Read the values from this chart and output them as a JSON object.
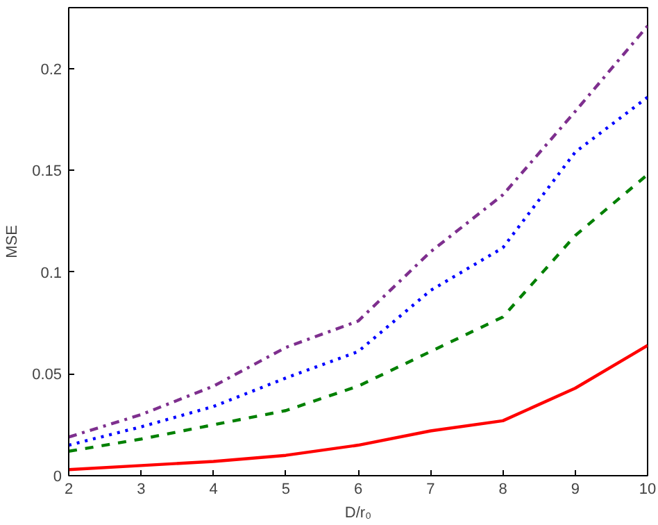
{
  "chart_data": {
    "type": "line",
    "xlabel": "D/r₀",
    "ylabel": "MSE",
    "x": [
      2,
      3,
      4,
      5,
      6,
      7,
      8,
      9,
      10
    ],
    "series": [
      {
        "color": "#ff0000",
        "line_style": "solid",
        "values": [
          0.003,
          0.005,
          0.007,
          0.01,
          0.015,
          0.022,
          0.027,
          0.043,
          0.064
        ]
      },
      {
        "color": "#008000",
        "line_style": "dashed",
        "values": [
          0.012,
          0.018,
          0.025,
          0.032,
          0.044,
          0.061,
          0.078,
          0.118,
          0.148
        ]
      },
      {
        "color": "#0000ff",
        "line_style": "dotted",
        "values": [
          0.015,
          0.024,
          0.034,
          0.048,
          0.061,
          0.091,
          0.112,
          0.159,
          0.186
        ]
      },
      {
        "color": "#7e2f8e",
        "line_style": "dashdot",
        "values": [
          0.019,
          0.03,
          0.044,
          0.063,
          0.076,
          0.11,
          0.138,
          0.179,
          0.221
        ]
      }
    ],
    "xlim": [
      2,
      10
    ],
    "ylim": [
      0,
      0.23
    ],
    "xticks": [
      2,
      3,
      4,
      5,
      6,
      7,
      8,
      9,
      10
    ],
    "yticks": [
      0,
      0.05,
      0.1,
      0.15,
      0.2
    ],
    "grid": false,
    "marker": "none"
  }
}
